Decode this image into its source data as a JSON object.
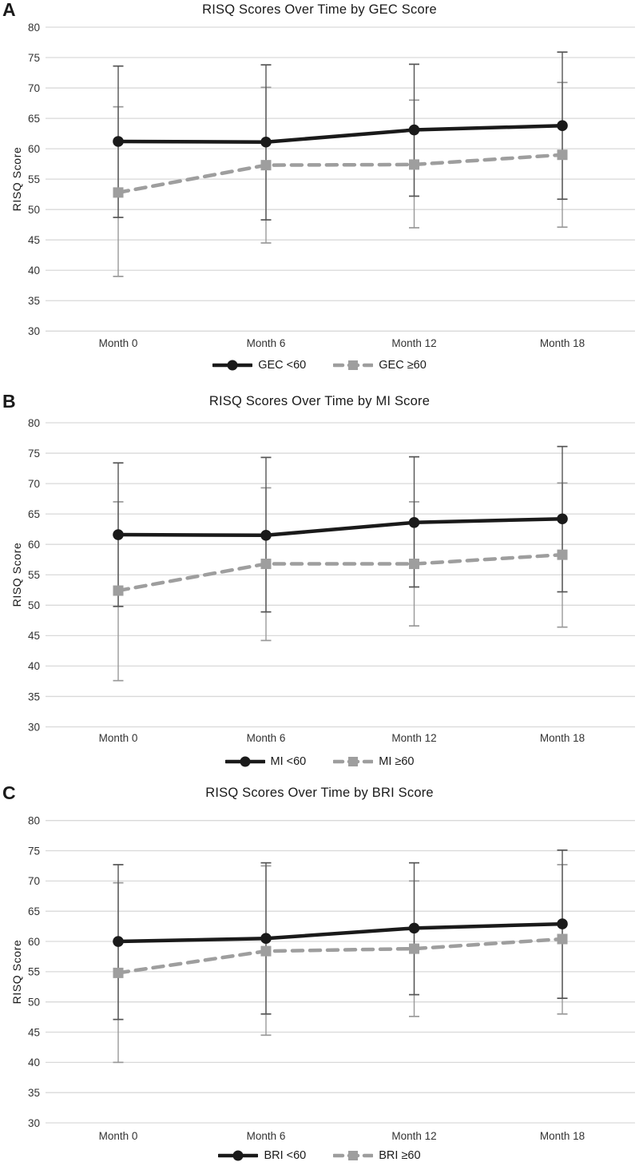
{
  "figure": {
    "background": "#ffffff",
    "panels": [
      {
        "letter": "A"
      },
      {
        "letter": "B"
      },
      {
        "letter": "C"
      }
    ]
  },
  "colors": {
    "grid": "#d9d9d9",
    "tick_text": "#333333",
    "title_text": "#1a1a1a",
    "series_dark": "#1a1a1a",
    "series_gray": "#9e9e9e",
    "whisker_dark": "#555555",
    "whisker_gray": "#999999"
  },
  "chart_data": [
    {
      "type": "line",
      "title": "RISQ Scores Over Time by GEC Score",
      "xlabel": "",
      "ylabel": "RISQ Score",
      "categories": [
        "Month 0",
        "Month 6",
        "Month 12",
        "Month 18"
      ],
      "ylim": [
        30,
        80
      ],
      "ytick_step": 5,
      "grid": true,
      "legend_position": "bottom",
      "series": [
        {
          "name": "GEC <60",
          "marker": "circle",
          "line": "solid",
          "color": "#1a1a1a",
          "whisker_color": "#555555",
          "values": [
            61.2,
            61.1,
            63.1,
            63.8
          ],
          "error_upper": [
            73.6,
            73.8,
            73.9,
            75.9
          ],
          "error_lower": [
            48.7,
            48.3,
            52.2,
            51.7
          ]
        },
        {
          "name": "GEC ≥60",
          "marker": "square",
          "line": "dashed",
          "color": "#9e9e9e",
          "whisker_color": "#999999",
          "values": [
            52.8,
            57.3,
            57.4,
            59.0
          ],
          "error_upper": [
            66.9,
            70.1,
            68.0,
            70.9
          ],
          "error_lower": [
            39.0,
            44.5,
            47.0,
            47.1
          ]
        }
      ]
    },
    {
      "type": "line",
      "title": "RISQ Scores Over Time by MI Score",
      "xlabel": "",
      "ylabel": "RISQ Score",
      "categories": [
        "Month 0",
        "Month 6",
        "Month 12",
        "Month 18"
      ],
      "ylim": [
        30,
        80
      ],
      "ytick_step": 5,
      "grid": true,
      "legend_position": "bottom",
      "series": [
        {
          "name": "MI <60",
          "marker": "circle",
          "line": "solid",
          "color": "#1a1a1a",
          "whisker_color": "#555555",
          "values": [
            61.6,
            61.5,
            63.6,
            64.2
          ],
          "error_upper": [
            73.4,
            74.3,
            74.4,
            76.1
          ],
          "error_lower": [
            49.8,
            48.9,
            53.0,
            52.2
          ]
        },
        {
          "name": "MI ≥60",
          "marker": "square",
          "line": "dashed",
          "color": "#9e9e9e",
          "whisker_color": "#999999",
          "values": [
            52.4,
            56.8,
            56.8,
            58.3
          ],
          "error_upper": [
            67.0,
            69.3,
            67.0,
            70.1
          ],
          "error_lower": [
            37.6,
            44.2,
            46.6,
            46.4
          ]
        }
      ]
    },
    {
      "type": "line",
      "title": "RISQ Scores Over Time by BRI Score",
      "xlabel": "",
      "ylabel": "RISQ Score",
      "categories": [
        "Month 0",
        "Month 6",
        "Month 12",
        "Month 18"
      ],
      "ylim": [
        30,
        80
      ],
      "ytick_step": 5,
      "grid": true,
      "legend_position": "bottom",
      "series": [
        {
          "name": "BRI <60",
          "marker": "circle",
          "line": "solid",
          "color": "#1a1a1a",
          "whisker_color": "#555555",
          "values": [
            60.0,
            60.5,
            62.2,
            62.9
          ],
          "error_upper": [
            72.7,
            73.0,
            73.0,
            75.1
          ],
          "error_lower": [
            47.1,
            48.0,
            51.2,
            50.6
          ]
        },
        {
          "name": "BRI ≥60",
          "marker": "square",
          "line": "dashed",
          "color": "#9e9e9e",
          "whisker_color": "#999999",
          "values": [
            54.8,
            58.4,
            58.8,
            60.4
          ],
          "error_upper": [
            69.7,
            72.5,
            70.0,
            72.7
          ],
          "error_lower": [
            40.0,
            44.5,
            47.6,
            48.0
          ]
        }
      ]
    }
  ]
}
